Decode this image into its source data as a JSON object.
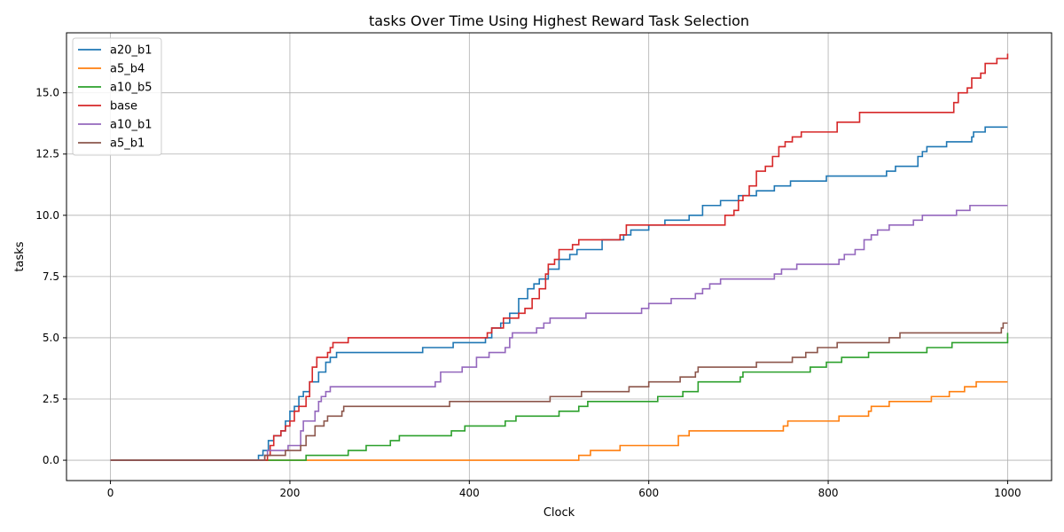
{
  "chart_data": {
    "type": "line",
    "title": "tasks Over Time Using Highest Reward Task Selection",
    "xlabel": "Clock",
    "ylabel": "tasks",
    "xlim": [
      -49,
      1049
    ],
    "ylim": [
      -0.83,
      17.45
    ],
    "xticks": [
      0,
      200,
      400,
      600,
      800,
      1000
    ],
    "xtick_labels": [
      "0",
      "200",
      "400",
      "600",
      "800",
      "1000"
    ],
    "yticks": [
      0.0,
      2.5,
      5.0,
      7.5,
      10.0,
      12.5,
      15.0
    ],
    "ytick_labels": [
      "0.0",
      "2.5",
      "5.0",
      "7.5",
      "10.0",
      "12.5",
      "15.0"
    ],
    "grid": true,
    "legend_position": "top-left",
    "step": true,
    "series": [
      {
        "name": "a20_b1",
        "color": "#1f77b4",
        "points": [
          [
            0,
            0
          ],
          [
            163,
            0
          ],
          [
            165,
            0.2
          ],
          [
            170,
            0.4
          ],
          [
            176,
            0.8
          ],
          [
            182,
            1.0
          ],
          [
            190,
            1.2
          ],
          [
            195,
            1.6
          ],
          [
            200,
            2.0
          ],
          [
            205,
            2.2
          ],
          [
            210,
            2.6
          ],
          [
            215,
            2.8
          ],
          [
            222,
            3.2
          ],
          [
            232,
            3.6
          ],
          [
            240,
            4.0
          ],
          [
            245,
            4.2
          ],
          [
            252,
            4.4
          ],
          [
            345,
            4.4
          ],
          [
            348,
            4.6
          ],
          [
            380,
            4.6
          ],
          [
            382,
            4.8
          ],
          [
            415,
            4.8
          ],
          [
            418,
            5.0
          ],
          [
            425,
            5.4
          ],
          [
            435,
            5.6
          ],
          [
            445,
            6.0
          ],
          [
            455,
            6.6
          ],
          [
            465,
            7.0
          ],
          [
            472,
            7.2
          ],
          [
            478,
            7.4
          ],
          [
            488,
            7.8
          ],
          [
            500,
            8.2
          ],
          [
            512,
            8.4
          ],
          [
            520,
            8.6
          ],
          [
            545,
            8.6
          ],
          [
            548,
            9.0
          ],
          [
            572,
            9.2
          ],
          [
            580,
            9.4
          ],
          [
            600,
            9.6
          ],
          [
            618,
            9.8
          ],
          [
            645,
            10.0
          ],
          [
            660,
            10.4
          ],
          [
            680,
            10.6
          ],
          [
            700,
            10.8
          ],
          [
            720,
            11.0
          ],
          [
            740,
            11.2
          ],
          [
            758,
            11.4
          ],
          [
            798,
            11.6
          ],
          [
            863,
            11.6
          ],
          [
            865,
            11.8
          ],
          [
            875,
            12.0
          ],
          [
            900,
            12.4
          ],
          [
            905,
            12.6
          ],
          [
            910,
            12.8
          ],
          [
            932,
            13.0
          ],
          [
            960,
            13.2
          ],
          [
            962,
            13.4
          ],
          [
            975,
            13.6
          ],
          [
            1000,
            13.6
          ]
        ]
      },
      {
        "name": "a5_b4",
        "color": "#ff7f0e",
        "points": [
          [
            0,
            0
          ],
          [
            518,
            0
          ],
          [
            522,
            0.2
          ],
          [
            535,
            0.4
          ],
          [
            568,
            0.6
          ],
          [
            630,
            0.6
          ],
          [
            633,
            1.0
          ],
          [
            645,
            1.2
          ],
          [
            748,
            1.2
          ],
          [
            750,
            1.4
          ],
          [
            755,
            1.6
          ],
          [
            810,
            1.6
          ],
          [
            812,
            1.8
          ],
          [
            842,
            1.8
          ],
          [
            845,
            2.0
          ],
          [
            848,
            2.2
          ],
          [
            868,
            2.4
          ],
          [
            912,
            2.4
          ],
          [
            915,
            2.6
          ],
          [
            935,
            2.8
          ],
          [
            952,
            3.0
          ],
          [
            965,
            3.2
          ],
          [
            1000,
            3.2
          ]
        ]
      },
      {
        "name": "a10_b5",
        "color": "#2ca02c",
        "points": [
          [
            0,
            0
          ],
          [
            215,
            0
          ],
          [
            218,
            0.2
          ],
          [
            265,
            0.4
          ],
          [
            285,
            0.6
          ],
          [
            312,
            0.8
          ],
          [
            322,
            1.0
          ],
          [
            378,
            1.0
          ],
          [
            380,
            1.2
          ],
          [
            395,
            1.4
          ],
          [
            438,
            1.4
          ],
          [
            440,
            1.6
          ],
          [
            452,
            1.8
          ],
          [
            498,
            1.8
          ],
          [
            500,
            2.0
          ],
          [
            522,
            2.2
          ],
          [
            532,
            2.4
          ],
          [
            608,
            2.4
          ],
          [
            610,
            2.6
          ],
          [
            638,
            2.8
          ],
          [
            655,
            3.2
          ],
          [
            700,
            3.2
          ],
          [
            702,
            3.4
          ],
          [
            705,
            3.6
          ],
          [
            778,
            3.6
          ],
          [
            780,
            3.8
          ],
          [
            798,
            4.0
          ],
          [
            815,
            4.2
          ],
          [
            845,
            4.4
          ],
          [
            908,
            4.4
          ],
          [
            910,
            4.6
          ],
          [
            938,
            4.8
          ],
          [
            998,
            4.8
          ],
          [
            1000,
            5.2
          ]
        ]
      },
      {
        "name": "base",
        "color": "#d62728",
        "points": [
          [
            0,
            0
          ],
          [
            173,
            0
          ],
          [
            175,
            0.2
          ],
          [
            178,
            0.6
          ],
          [
            182,
            1.0
          ],
          [
            190,
            1.2
          ],
          [
            195,
            1.4
          ],
          [
            200,
            1.6
          ],
          [
            205,
            2.0
          ],
          [
            210,
            2.2
          ],
          [
            218,
            2.6
          ],
          [
            222,
            3.2
          ],
          [
            225,
            3.8
          ],
          [
            230,
            4.2
          ],
          [
            242,
            4.4
          ],
          [
            245,
            4.6
          ],
          [
            248,
            4.8
          ],
          [
            265,
            5.0
          ],
          [
            418,
            5.0
          ],
          [
            420,
            5.2
          ],
          [
            425,
            5.4
          ],
          [
            438,
            5.8
          ],
          [
            448,
            5.8
          ],
          [
            455,
            6.0
          ],
          [
            462,
            6.2
          ],
          [
            470,
            6.6
          ],
          [
            478,
            7.0
          ],
          [
            485,
            7.6
          ],
          [
            488,
            8.0
          ],
          [
            495,
            8.2
          ],
          [
            500,
            8.6
          ],
          [
            515,
            8.8
          ],
          [
            522,
            9.0
          ],
          [
            568,
            9.2
          ],
          [
            575,
            9.6
          ],
          [
            683,
            9.6
          ],
          [
            685,
            10.0
          ],
          [
            695,
            10.2
          ],
          [
            700,
            10.6
          ],
          [
            705,
            10.8
          ],
          [
            712,
            11.2
          ],
          [
            720,
            11.8
          ],
          [
            730,
            12.0
          ],
          [
            738,
            12.4
          ],
          [
            745,
            12.8
          ],
          [
            752,
            13.0
          ],
          [
            760,
            13.2
          ],
          [
            770,
            13.4
          ],
          [
            808,
            13.4
          ],
          [
            810,
            13.8
          ],
          [
            832,
            13.8
          ],
          [
            835,
            14.2
          ],
          [
            938,
            14.2
          ],
          [
            940,
            14.6
          ],
          [
            945,
            15.0
          ],
          [
            955,
            15.2
          ],
          [
            960,
            15.6
          ],
          [
            970,
            15.8
          ],
          [
            975,
            16.2
          ],
          [
            988,
            16.4
          ],
          [
            998,
            16.4
          ],
          [
            1000,
            16.6
          ]
        ]
      },
      {
        "name": "a10_b1",
        "color": "#9467bd",
        "points": [
          [
            0,
            0
          ],
          [
            170,
            0
          ],
          [
            172,
            0.2
          ],
          [
            175,
            0.4
          ],
          [
            195,
            0.4
          ],
          [
            198,
            0.6
          ],
          [
            210,
            0.6
          ],
          [
            212,
            1.2
          ],
          [
            215,
            1.6
          ],
          [
            228,
            2.0
          ],
          [
            232,
            2.4
          ],
          [
            235,
            2.6
          ],
          [
            240,
            2.8
          ],
          [
            245,
            3.0
          ],
          [
            360,
            3.0
          ],
          [
            362,
            3.2
          ],
          [
            368,
            3.6
          ],
          [
            390,
            3.6
          ],
          [
            392,
            3.8
          ],
          [
            405,
            3.8
          ],
          [
            408,
            4.2
          ],
          [
            422,
            4.4
          ],
          [
            440,
            4.6
          ],
          [
            445,
            5.0
          ],
          [
            448,
            5.2
          ],
          [
            475,
            5.4
          ],
          [
            483,
            5.6
          ],
          [
            490,
            5.8
          ],
          [
            528,
            5.8
          ],
          [
            530,
            6.0
          ],
          [
            590,
            6.0
          ],
          [
            592,
            6.2
          ],
          [
            600,
            6.4
          ],
          [
            625,
            6.6
          ],
          [
            652,
            6.8
          ],
          [
            660,
            7.0
          ],
          [
            668,
            7.2
          ],
          [
            680,
            7.4
          ],
          [
            738,
            7.4
          ],
          [
            740,
            7.6
          ],
          [
            748,
            7.8
          ],
          [
            765,
            8.0
          ],
          [
            808,
            8.0
          ],
          [
            812,
            8.2
          ],
          [
            818,
            8.4
          ],
          [
            830,
            8.6
          ],
          [
            840,
            9.0
          ],
          [
            848,
            9.2
          ],
          [
            855,
            9.4
          ],
          [
            868,
            9.6
          ],
          [
            895,
            9.8
          ],
          [
            905,
            10.0
          ],
          [
            940,
            10.0
          ],
          [
            943,
            10.2
          ],
          [
            958,
            10.4
          ],
          [
            1000,
            10.4
          ]
        ]
      },
      {
        "name": "a5_b1",
        "color": "#8c564b",
        "points": [
          [
            0,
            0
          ],
          [
            170,
            0
          ],
          [
            172,
            0.2
          ],
          [
            195,
            0.4
          ],
          [
            212,
            0.6
          ],
          [
            218,
            1.0
          ],
          [
            228,
            1.4
          ],
          [
            238,
            1.6
          ],
          [
            242,
            1.8
          ],
          [
            258,
            2.0
          ],
          [
            260,
            2.2
          ],
          [
            375,
            2.2
          ],
          [
            378,
            2.4
          ],
          [
            488,
            2.4
          ],
          [
            490,
            2.6
          ],
          [
            522,
            2.6
          ],
          [
            525,
            2.8
          ],
          [
            575,
            2.8
          ],
          [
            578,
            3.0
          ],
          [
            598,
            3.0
          ],
          [
            600,
            3.2
          ],
          [
            633,
            3.2
          ],
          [
            635,
            3.4
          ],
          [
            650,
            3.4
          ],
          [
            652,
            3.6
          ],
          [
            655,
            3.8
          ],
          [
            718,
            3.8
          ],
          [
            720,
            4.0
          ],
          [
            758,
            4.0
          ],
          [
            760,
            4.2
          ],
          [
            775,
            4.4
          ],
          [
            788,
            4.6
          ],
          [
            808,
            4.6
          ],
          [
            810,
            4.8
          ],
          [
            865,
            4.8
          ],
          [
            868,
            5.0
          ],
          [
            880,
            5.2
          ],
          [
            990,
            5.2
          ],
          [
            993,
            5.4
          ],
          [
            995,
            5.6
          ],
          [
            1000,
            5.6
          ]
        ]
      }
    ]
  }
}
